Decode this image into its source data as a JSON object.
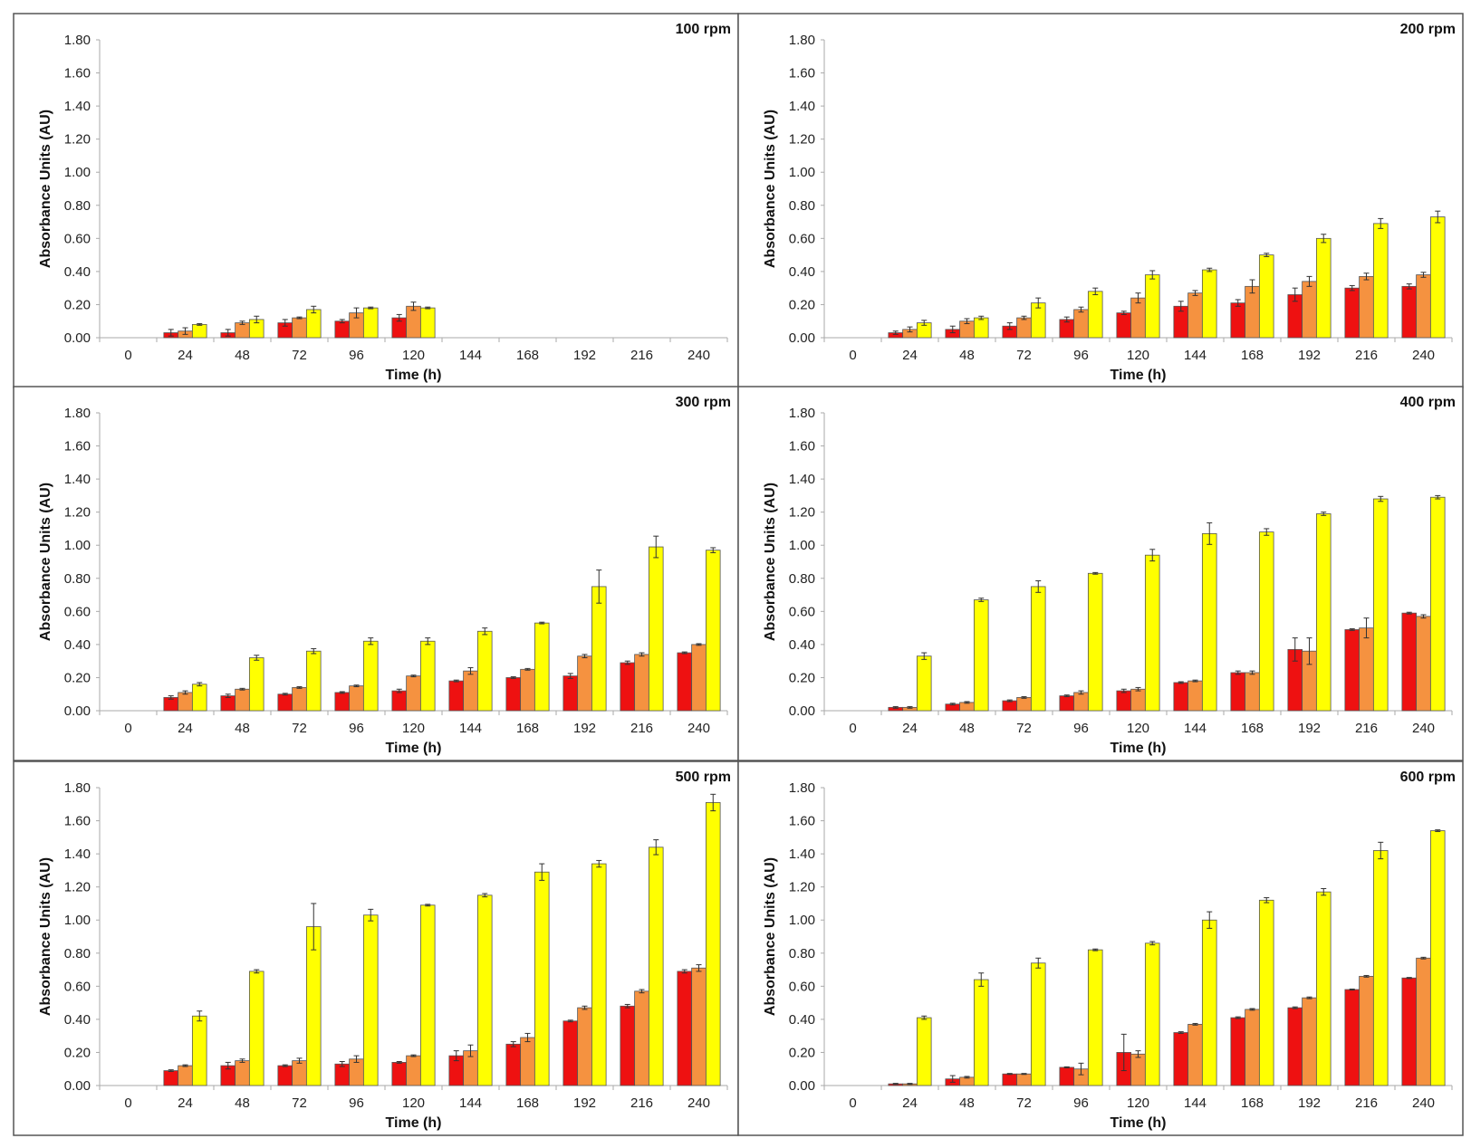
{
  "colors": {
    "series": [
      "#ee1111",
      "#f59240",
      "#ffff00"
    ],
    "bar_stroke": "#555555",
    "axis": "#aaaaaa",
    "frame": "#555555"
  },
  "chart_data": [
    {
      "type": "bar",
      "title": "100 rpm",
      "xlabel": "Time (h)",
      "ylabel": "Absorbance Units (AU)",
      "ylim": [
        0,
        1.8
      ],
      "grid": false,
      "categories": [
        "0",
        "24",
        "48",
        "72",
        "96",
        "120",
        "144",
        "168",
        "192",
        "216",
        "240"
      ],
      "ytick_labels": [
        "0.00",
        "0.20",
        "0.40",
        "0.60",
        "0.80",
        "1.00",
        "1.20",
        "1.40",
        "1.60",
        "1.80"
      ],
      "series": [
        {
          "color": "#ee1111",
          "values": [
            0,
            0.03,
            0.03,
            0.09,
            0.1,
            0.12,
            null,
            null,
            null,
            null,
            null
          ],
          "yerr": [
            0,
            0.02,
            0.02,
            0.02,
            0.01,
            0.02,
            0,
            0,
            0,
            0,
            0
          ]
        },
        {
          "color": "#f59240",
          "values": [
            0,
            0.04,
            0.09,
            0.12,
            0.15,
            0.19,
            null,
            null,
            null,
            null,
            null
          ],
          "yerr": [
            0,
            0.02,
            0.01,
            0.005,
            0.03,
            0.025,
            0,
            0,
            0,
            0,
            0
          ]
        },
        {
          "color": "#ffff00",
          "values": [
            0,
            0.08,
            0.11,
            0.17,
            0.18,
            0.18,
            null,
            null,
            null,
            null,
            null
          ],
          "yerr": [
            0,
            0.005,
            0.02,
            0.02,
            0.005,
            0.005,
            0,
            0,
            0,
            0,
            0
          ]
        }
      ]
    },
    {
      "type": "bar",
      "title": "200 rpm",
      "xlabel": "Time (h)",
      "ylabel": "Absorbance Units (AU)",
      "ylim": [
        0,
        1.8
      ],
      "grid": false,
      "categories": [
        "0",
        "24",
        "48",
        "72",
        "96",
        "120",
        "144",
        "168",
        "192",
        "216",
        "240"
      ],
      "ytick_labels": [
        "0.00",
        "0.20",
        "0.40",
        "0.60",
        "0.80",
        "1.00",
        "1.20",
        "1.40",
        "1.60",
        "1.80"
      ],
      "series": [
        {
          "color": "#ee1111",
          "values": [
            0,
            0.03,
            0.05,
            0.07,
            0.11,
            0.15,
            0.19,
            0.21,
            0.26,
            0.3,
            0.31
          ],
          "yerr": [
            0,
            0.01,
            0.02,
            0.02,
            0.015,
            0.01,
            0.03,
            0.02,
            0.04,
            0.015,
            0.015
          ]
        },
        {
          "color": "#f59240",
          "values": [
            0,
            0.05,
            0.1,
            0.12,
            0.17,
            0.24,
            0.27,
            0.31,
            0.34,
            0.37,
            0.38
          ],
          "yerr": [
            0,
            0.015,
            0.015,
            0.01,
            0.015,
            0.03,
            0.015,
            0.04,
            0.03,
            0.02,
            0.015
          ]
        },
        {
          "color": "#ffff00",
          "values": [
            0,
            0.09,
            0.12,
            0.21,
            0.28,
            0.38,
            0.41,
            0.5,
            0.6,
            0.69,
            0.73
          ],
          "yerr": [
            0,
            0.015,
            0.01,
            0.03,
            0.02,
            0.025,
            0.01,
            0.01,
            0.025,
            0.03,
            0.035
          ]
        }
      ]
    },
    {
      "type": "bar",
      "title": "300 rpm",
      "xlabel": "Time (h)",
      "ylabel": "Absorbance Units (AU)",
      "ylim": [
        0,
        1.8
      ],
      "grid": false,
      "categories": [
        "0",
        "24",
        "48",
        "72",
        "96",
        "120",
        "144",
        "168",
        "192",
        "216",
        "240"
      ],
      "ytick_labels": [
        "0.00",
        "0.20",
        "0.40",
        "0.60",
        "0.80",
        "1.00",
        "1.20",
        "1.40",
        "1.60",
        "1.80"
      ],
      "series": [
        {
          "color": "#ee1111",
          "values": [
            0,
            0.08,
            0.09,
            0.1,
            0.11,
            0.12,
            0.18,
            0.2,
            0.21,
            0.29,
            0.35
          ],
          "yerr": [
            0,
            0.01,
            0.01,
            0.005,
            0.005,
            0.01,
            0.005,
            0.005,
            0.015,
            0.01,
            0.005
          ]
        },
        {
          "color": "#f59240",
          "values": [
            0,
            0.11,
            0.13,
            0.14,
            0.15,
            0.21,
            0.24,
            0.25,
            0.33,
            0.34,
            0.4
          ],
          "yerr": [
            0,
            0.01,
            0.005,
            0.005,
            0.005,
            0.005,
            0.02,
            0.005,
            0.01,
            0.01,
            0.005
          ]
        },
        {
          "color": "#ffff00",
          "values": [
            0,
            0.16,
            0.32,
            0.36,
            0.42,
            0.42,
            0.48,
            0.53,
            0.75,
            0.99,
            0.97
          ],
          "yerr": [
            0,
            0.01,
            0.015,
            0.015,
            0.02,
            0.02,
            0.02,
            0.005,
            0.1,
            0.065,
            0.015
          ]
        }
      ]
    },
    {
      "type": "bar",
      "title": "400 rpm",
      "xlabel": "Time (h)",
      "ylabel": "Absorbance Units (AU)",
      "ylim": [
        0,
        1.8
      ],
      "grid": false,
      "categories": [
        "0",
        "24",
        "48",
        "72",
        "96",
        "120",
        "144",
        "168",
        "192",
        "216",
        "240"
      ],
      "ytick_labels": [
        "0.00",
        "0.20",
        "0.40",
        "0.60",
        "0.80",
        "1.00",
        "1.20",
        "1.40",
        "1.60",
        "1.80"
      ],
      "series": [
        {
          "color": "#ee1111",
          "values": [
            0,
            0.02,
            0.04,
            0.06,
            0.09,
            0.12,
            0.17,
            0.23,
            0.37,
            0.49,
            0.59
          ],
          "yerr": [
            0,
            0.005,
            0.005,
            0.005,
            0.005,
            0.01,
            0.005,
            0.01,
            0.07,
            0.005,
            0.005
          ]
        },
        {
          "color": "#f59240",
          "values": [
            0,
            0.02,
            0.05,
            0.08,
            0.11,
            0.13,
            0.18,
            0.23,
            0.36,
            0.5,
            0.57
          ],
          "yerr": [
            0,
            0.005,
            0.005,
            0.005,
            0.01,
            0.01,
            0.005,
            0.01,
            0.08,
            0.06,
            0.01
          ]
        },
        {
          "color": "#ffff00",
          "values": [
            0,
            0.33,
            0.67,
            0.75,
            0.83,
            0.94,
            1.07,
            1.08,
            1.19,
            1.28,
            1.29
          ],
          "yerr": [
            0,
            0.02,
            0.01,
            0.035,
            0.005,
            0.035,
            0.065,
            0.02,
            0.01,
            0.015,
            0.01
          ]
        }
      ]
    },
    {
      "type": "bar",
      "title": "500 rpm",
      "xlabel": "Time (h)",
      "ylabel": "Absorbance Units (AU)",
      "ylim": [
        0,
        1.8
      ],
      "grid": false,
      "categories": [
        "0",
        "24",
        "48",
        "72",
        "96",
        "120",
        "144",
        "168",
        "192",
        "216",
        "240"
      ],
      "ytick_labels": [
        "0.00",
        "0.20",
        "0.40",
        "0.60",
        "0.80",
        "1.00",
        "1.20",
        "1.40",
        "1.60",
        "1.80"
      ],
      "series": [
        {
          "color": "#ee1111",
          "values": [
            0,
            0.09,
            0.12,
            0.12,
            0.13,
            0.14,
            0.18,
            0.25,
            0.39,
            0.48,
            0.69
          ],
          "yerr": [
            0,
            0.005,
            0.02,
            0.005,
            0.015,
            0.005,
            0.03,
            0.015,
            0.005,
            0.01,
            0.01
          ]
        },
        {
          "color": "#f59240",
          "values": [
            0,
            0.12,
            0.15,
            0.15,
            0.16,
            0.18,
            0.21,
            0.29,
            0.47,
            0.57,
            0.71
          ],
          "yerr": [
            0,
            0.005,
            0.01,
            0.015,
            0.02,
            0.005,
            0.035,
            0.025,
            0.01,
            0.01,
            0.02
          ]
        },
        {
          "color": "#ffff00",
          "values": [
            0,
            0.42,
            0.69,
            0.96,
            1.03,
            1.09,
            1.15,
            1.29,
            1.34,
            1.44,
            1.71
          ],
          "yerr": [
            0,
            0.03,
            0.01,
            0.14,
            0.035,
            0.005,
            0.01,
            0.05,
            0.02,
            0.045,
            0.05
          ]
        }
      ]
    },
    {
      "type": "bar",
      "title": "600 rpm",
      "xlabel": "Time (h)",
      "ylabel": "Absorbance Units (AU)",
      "ylim": [
        0,
        1.8
      ],
      "grid": false,
      "categories": [
        "0",
        "24",
        "48",
        "72",
        "96",
        "120",
        "144",
        "168",
        "192",
        "216",
        "240"
      ],
      "ytick_labels": [
        "0.00",
        "0.20",
        "0.40",
        "0.60",
        "0.80",
        "1.00",
        "1.20",
        "1.40",
        "1.60",
        "1.80"
      ],
      "series": [
        {
          "color": "#ee1111",
          "values": [
            0,
            0.01,
            0.04,
            0.07,
            0.11,
            0.2,
            0.32,
            0.41,
            0.47,
            0.58,
            0.65
          ],
          "yerr": [
            0,
            0.003,
            0.02,
            0.003,
            0.003,
            0.11,
            0.005,
            0.005,
            0.005,
            0.003,
            0.003
          ]
        },
        {
          "color": "#f59240",
          "values": [
            0,
            0.01,
            0.05,
            0.07,
            0.1,
            0.19,
            0.37,
            0.46,
            0.53,
            0.66,
            0.77
          ],
          "yerr": [
            0,
            0.003,
            0.005,
            0.003,
            0.035,
            0.02,
            0.005,
            0.005,
            0.005,
            0.005,
            0.005
          ]
        },
        {
          "color": "#ffff00",
          "values": [
            0,
            0.41,
            0.64,
            0.74,
            0.82,
            0.86,
            1.0,
            1.12,
            1.17,
            1.42,
            1.54
          ],
          "yerr": [
            0,
            0.01,
            0.04,
            0.03,
            0.005,
            0.01,
            0.05,
            0.015,
            0.02,
            0.05,
            0.005
          ]
        }
      ]
    }
  ]
}
